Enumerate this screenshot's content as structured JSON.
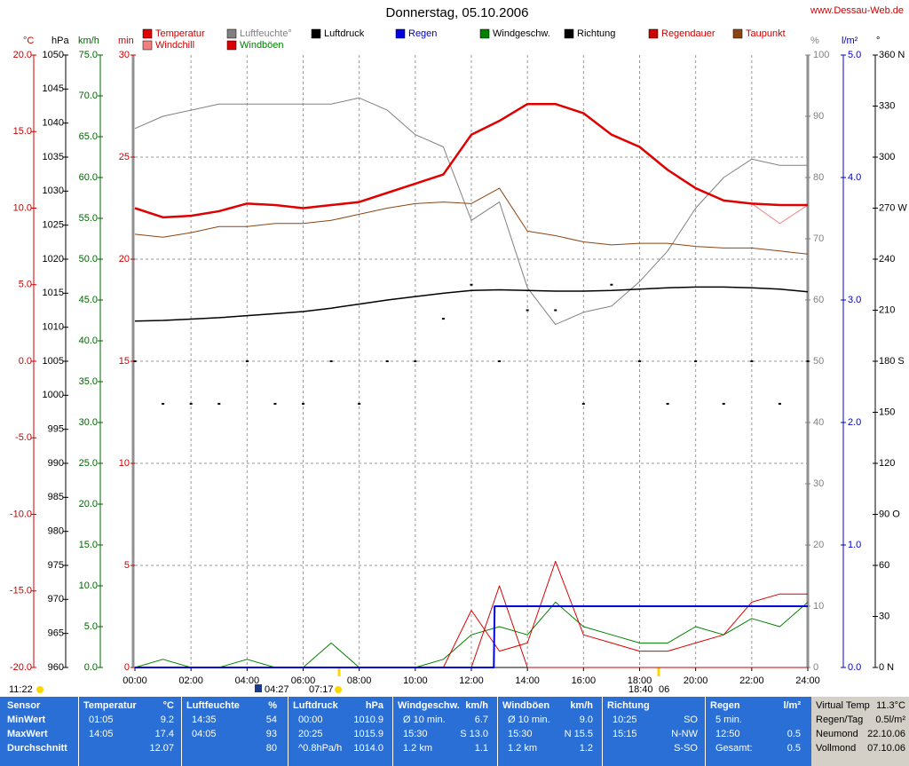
{
  "site": "www.Dessau-Web.de",
  "chart_data": {
    "type": "line",
    "title": "Donnerstag, 05.10.2006",
    "x": [
      0,
      1,
      2,
      3,
      4,
      5,
      6,
      7,
      8,
      9,
      10,
      11,
      12,
      13,
      14,
      15,
      16,
      17,
      18,
      19,
      20,
      21,
      22,
      23,
      24
    ],
    "xlim": [
      0,
      24
    ],
    "xticks": [
      {
        "value": 0,
        "label": "00:00"
      },
      {
        "value": 2,
        "label": "02:00"
      },
      {
        "value": 4,
        "label": "04:00"
      },
      {
        "value": 6,
        "label": "06:00"
      },
      {
        "value": 8,
        "label": "08:00"
      },
      {
        "value": 10,
        "label": "10:00"
      },
      {
        "value": 12,
        "label": "12:00"
      },
      {
        "value": 14,
        "label": "14:00"
      },
      {
        "value": 16,
        "label": "16:00"
      },
      {
        "value": 18,
        "label": "18:00"
      },
      {
        "value": 20,
        "label": "20:00"
      },
      {
        "value": 22,
        "label": "22:00"
      },
      {
        "value": 24,
        "label": "24:00"
      }
    ],
    "grid": true,
    "axes": {
      "y": {
        "label": "°C",
        "color": "#cc0000",
        "side": "left",
        "lim": [
          -20,
          20
        ],
        "ticks": [
          {
            "value": 20,
            "label": "20.0"
          },
          {
            "value": 15,
            "label": "15.0"
          },
          {
            "value": 10,
            "label": "10.0"
          },
          {
            "value": 5,
            "label": "5.0"
          },
          {
            "value": 0,
            "label": "0.0"
          },
          {
            "value": -5,
            "label": "-5.0"
          },
          {
            "value": -10,
            "label": "-10.0"
          },
          {
            "value": -15,
            "label": "-15.0"
          },
          {
            "value": -20,
            "label": "-20.0"
          }
        ]
      },
      "y2": {
        "label": "hPa",
        "color": "#000000",
        "side": "left",
        "lim": [
          960,
          1050
        ],
        "ticks": [
          1050,
          1045,
          1040,
          1035,
          1030,
          1025,
          1020,
          1015,
          1010,
          1005,
          1000,
          995,
          990,
          985,
          980,
          975,
          970,
          965,
          960
        ]
      },
      "y3": {
        "label": "km/h",
        "color": "#006600",
        "side": "left",
        "lim": [
          0,
          75
        ],
        "ticks": [
          {
            "value": 75,
            "label": "75.0"
          },
          {
            "value": 70,
            "label": "70.0"
          },
          {
            "value": 65,
            "label": "65.0"
          },
          {
            "value": 60,
            "label": "60.0"
          },
          {
            "value": 55,
            "label": "55.0"
          },
          {
            "value": 50,
            "label": "50.0"
          },
          {
            "value": 45,
            "label": "45.0"
          },
          {
            "value": 40,
            "label": "40.0"
          },
          {
            "value": 35,
            "label": "35.0"
          },
          {
            "value": 30,
            "label": "30.0"
          },
          {
            "value": 25,
            "label": "25.0"
          },
          {
            "value": 20,
            "label": "20.0"
          },
          {
            "value": 15,
            "label": "15.0"
          },
          {
            "value": 10,
            "label": "10.0"
          },
          {
            "value": 5,
            "label": "5.0"
          },
          {
            "value": 0,
            "label": "0.0"
          }
        ]
      },
      "y4": {
        "label": "min",
        "color": "#cc0000",
        "side": "left",
        "lim": [
          0,
          30
        ],
        "ticks": [
          30,
          25,
          20,
          15,
          10,
          5,
          0
        ]
      },
      "y5": {
        "label": "%",
        "color": "#808080",
        "side": "right",
        "lim": [
          0,
          100
        ],
        "ticks": [
          100,
          90,
          80,
          70,
          60,
          50,
          40,
          30,
          20,
          10,
          0
        ]
      },
      "y6": {
        "label": "l/m²",
        "color": "#0000cc",
        "side": "right",
        "lim": [
          0,
          5
        ],
        "ticks": [
          {
            "value": 5,
            "label": "5.0"
          },
          {
            "value": 4,
            "label": "4.0"
          },
          {
            "value": 3,
            "label": "3.0"
          },
          {
            "value": 2,
            "label": "2.0"
          },
          {
            "value": 1,
            "label": "1.0"
          },
          {
            "value": 0,
            "label": "0.0"
          }
        ]
      },
      "y7": {
        "label": "°",
        "color": "#000000",
        "side": "right",
        "lim": [
          0,
          360
        ],
        "ticks": [
          {
            "value": 360,
            "label": "360 N"
          },
          330,
          300,
          {
            "value": 270,
            "label": "270 W"
          },
          240,
          210,
          {
            "value": 180,
            "label": "180 S"
          },
          150,
          120,
          {
            "value": 90,
            "label": "90 O"
          },
          60,
          30,
          {
            "value": 0,
            "label": "0 N"
          }
        ]
      }
    },
    "series": [
      {
        "name": "Temperatur",
        "color": "#e00000",
        "label_color": "#cc0000",
        "axis": "y",
        "width": 2.5,
        "values": [
          10.0,
          9.4,
          9.5,
          9.8,
          10.3,
          10.2,
          10.0,
          10.2,
          10.4,
          11.0,
          11.6,
          12.2,
          14.8,
          15.7,
          16.8,
          16.8,
          16.2,
          14.8,
          14.0,
          12.5,
          11.3,
          10.5,
          10.3,
          10.2,
          10.2
        ]
      },
      {
        "name": "Luftfeuchte°",
        "color": "#808080",
        "label_color": "#808080",
        "axis": "y5",
        "width": 1,
        "values": [
          88,
          90,
          91,
          92,
          92,
          92,
          92,
          92,
          93,
          91,
          87,
          85,
          73,
          76,
          62,
          56,
          58,
          59,
          63,
          68,
          75,
          80,
          83,
          82,
          82
        ]
      },
      {
        "name": "Luftdruck",
        "color": "#000000",
        "label_color": "#000000",
        "axis": "y2",
        "width": 1.5,
        "values": [
          1010.9,
          1011.0,
          1011.2,
          1011.4,
          1011.7,
          1012.0,
          1012.3,
          1012.8,
          1013.4,
          1014.0,
          1014.5,
          1015.0,
          1015.4,
          1015.5,
          1015.4,
          1015.3,
          1015.3,
          1015.4,
          1015.6,
          1015.8,
          1015.9,
          1015.9,
          1015.8,
          1015.6,
          1015.2
        ]
      },
      {
        "name": "Regen",
        "color": "#0000e0",
        "label_color": "#0000cc",
        "axis": "y6",
        "width": 2,
        "x": [
          0,
          12.8,
          12.83,
          24
        ],
        "values": [
          0,
          0,
          0.5,
          0.5
        ]
      },
      {
        "name": "Windgeschw.",
        "color": "#008000",
        "label_color": "#000000",
        "axis": "y3",
        "width": 1,
        "values": [
          0,
          1,
          0,
          0,
          1,
          0,
          0,
          3,
          0,
          0,
          0,
          1,
          4,
          5,
          4,
          8,
          5,
          4,
          3,
          3,
          5,
          4,
          6,
          5,
          8
        ]
      },
      {
        "name": "Richtung",
        "color": "#000000",
        "label_color": "#000000",
        "axis": "y7",
        "style": "dots",
        "values": [
          180,
          155,
          155,
          155,
          180,
          155,
          155,
          180,
          155,
          180,
          180,
          205,
          225,
          180,
          210,
          210,
          155,
          225,
          180,
          155,
          180,
          155,
          180,
          155,
          180
        ]
      },
      {
        "name": "Regendauer",
        "color": "#cc0000",
        "label_color": "#cc0000",
        "axis": "y4",
        "width": 1,
        "values": [
          0,
          0,
          0,
          0,
          0,
          0,
          0,
          0,
          0,
          0,
          0,
          0,
          0,
          4,
          0,
          0,
          0,
          0,
          0,
          0,
          0,
          0,
          0,
          0,
          0
        ]
      },
      {
        "name": "Taupunkt",
        "color": "#8b4513",
        "label_color": "#cc0000",
        "axis": "y",
        "width": 1,
        "values": [
          8.3,
          8.1,
          8.4,
          8.8,
          8.8,
          9.0,
          9.0,
          9.2,
          9.6,
          10.0,
          10.3,
          10.4,
          10.3,
          11.3,
          8.5,
          8.2,
          7.8,
          7.6,
          7.7,
          7.7,
          7.5,
          7.4,
          7.4,
          7.2,
          7.0
        ]
      },
      {
        "name": "Windchill",
        "color": "#f08080",
        "label_color": "#cc0000",
        "axis": "y",
        "width": 1,
        "values": [
          10.0,
          9.4,
          9.5,
          9.8,
          10.3,
          10.2,
          10.0,
          10.2,
          10.4,
          11.0,
          11.6,
          12.2,
          14.8,
          15.7,
          16.8,
          16.8,
          16.2,
          14.8,
          14.0,
          12.5,
          11.3,
          10.5,
          10.3,
          9.0,
          10.2
        ]
      },
      {
        "name": "Windböen",
        "color": "#dd0000",
        "label_color": "#008000",
        "axis": "y3",
        "width": 1,
        "values": [
          0,
          0,
          0,
          0,
          0,
          0,
          0,
          0,
          0,
          0,
          0,
          0,
          7,
          2,
          3,
          13,
          4,
          3,
          2,
          2,
          3,
          4,
          8,
          9,
          9
        ]
      }
    ],
    "annotations": [
      "11:22",
      "04:27",
      "07:17",
      "18:40",
      "06"
    ]
  },
  "stats": {
    "sensor": [
      "Sensor",
      "MinWert",
      "MaxWert",
      "Durchschnitt"
    ],
    "columns": [
      {
        "title": "Temperatur",
        "unit": "°C",
        "rows": [
          {
            "left": "01:05",
            "right": "9.2"
          },
          {
            "left": "14:05",
            "right": "17.4"
          },
          {
            "right": "12.07"
          }
        ]
      },
      {
        "title": "Luftfeuchte",
        "unit": "%",
        "rows": [
          {
            "left": "14:35",
            "right": "54"
          },
          {
            "left": "04:05",
            "right": "93"
          },
          {
            "right": "80"
          }
        ]
      },
      {
        "title": "Luftdruck",
        "unit": "hPa",
        "rows": [
          {
            "left": "00:00",
            "right": "1010.9"
          },
          {
            "left": "20:25",
            "right": "1015.9"
          },
          {
            "left": "^0.8hPa/h",
            "right": "1014.0"
          }
        ]
      },
      {
        "title": "Windgeschw.",
        "unit": "km/h",
        "rows": [
          {
            "left": "Ø 10 min.",
            "right": "6.7"
          },
          {
            "left": "15:30",
            "right": "S 13.0"
          },
          {
            "left": "1.2 km",
            "right": "1.1"
          }
        ]
      },
      {
        "title": "Windböen",
        "unit": "km/h",
        "rows": [
          {
            "left": "Ø 10 min.",
            "right": "9.0"
          },
          {
            "left": "15:30",
            "right": "N 15.5"
          },
          {
            "left": "1.2 km",
            "right": "1.2"
          }
        ]
      },
      {
        "title": "Richtung",
        "rows": [
          {
            "left": "10:25",
            "right": "SO"
          },
          {
            "left": "15:15",
            "right": "N-NW"
          },
          {
            "right": "S-SO"
          }
        ]
      },
      {
        "title": "Regen",
        "unit": "l/m²",
        "rows": [
          {
            "left": "5 min."
          },
          {
            "left": "12:50",
            "right": "0.5"
          },
          {
            "left": "Gesamt:",
            "right": "0.5"
          }
        ]
      }
    ],
    "panel": [
      [
        "Virtual Temp",
        "11.3°C"
      ],
      [
        "Regen/Tag",
        "0.5l/m²"
      ],
      [
        "Neumond",
        "22.10.06"
      ],
      [
        "Vollmond",
        "07.10.06"
      ]
    ]
  }
}
